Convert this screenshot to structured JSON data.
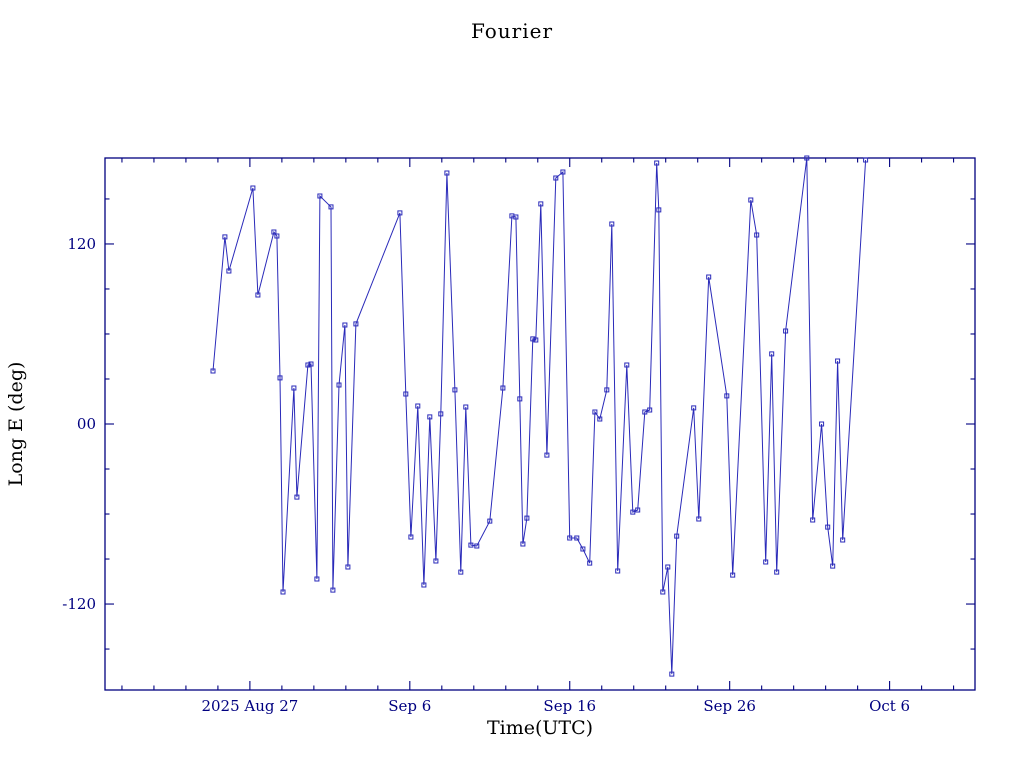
{
  "chart_data": {
    "type": "line",
    "title": "Fourier",
    "xlabel": "Time(UTC)",
    "ylabel": "Long E (deg)",
    "xlim": [
      0,
      54.4
    ],
    "ylim": [
      -177.3,
      177.3
    ],
    "grid": false,
    "legend": "none",
    "frame_color": "#000080",
    "line_color": "#2a2ab9",
    "marker": "open-square",
    "x_ticks": [
      {
        "label": "2025 Aug 27",
        "day": 9.06
      },
      {
        "label": "Sep 6",
        "day": 19.06
      },
      {
        "label": "Sep 16",
        "day": 29.06
      },
      {
        "label": "Sep 26",
        "day": 39.06
      },
      {
        "label": "Oct 6",
        "day": 49.06
      }
    ],
    "x_minor_start": 1.06,
    "x_minor_step": 2,
    "y_ticks": [
      {
        "label": "120",
        "value": 120
      },
      {
        "label": "00",
        "value": 0
      },
      {
        "label": "-120",
        "value": -120
      }
    ],
    "y_minor_step": 30,
    "points": [
      [
        6.75,
        35.3
      ],
      [
        7.5,
        124.7
      ],
      [
        7.75,
        102.0
      ],
      [
        9.25,
        157.3
      ],
      [
        9.56,
        86.0
      ],
      [
        10.56,
        128.0
      ],
      [
        10.75,
        125.3
      ],
      [
        10.94,
        30.7
      ],
      [
        11.13,
        -112.0
      ],
      [
        11.81,
        24.0
      ],
      [
        12.0,
        -48.7
      ],
      [
        12.69,
        39.3
      ],
      [
        12.88,
        40.0
      ],
      [
        13.25,
        -103.3
      ],
      [
        13.44,
        152.0
      ],
      [
        14.13,
        144.7
      ],
      [
        14.25,
        -110.7
      ],
      [
        14.63,
        26.0
      ],
      [
        15.0,
        66.0
      ],
      [
        15.19,
        -95.3
      ],
      [
        15.69,
        66.7
      ],
      [
        18.44,
        140.7
      ],
      [
        18.81,
        20.0
      ],
      [
        19.13,
        -75.3
      ],
      [
        19.56,
        12.0
      ],
      [
        19.94,
        -107.3
      ],
      [
        20.31,
        4.7
      ],
      [
        20.69,
        -91.3
      ],
      [
        21.0,
        6.7
      ],
      [
        21.38,
        167.3
      ],
      [
        21.88,
        22.7
      ],
      [
        22.25,
        -98.7
      ],
      [
        22.56,
        11.3
      ],
      [
        22.88,
        -80.7
      ],
      [
        23.25,
        -81.3
      ],
      [
        24.06,
        -64.7
      ],
      [
        24.88,
        24.0
      ],
      [
        25.44,
        138.7
      ],
      [
        25.69,
        138.0
      ],
      [
        25.94,
        16.7
      ],
      [
        26.13,
        -80.0
      ],
      [
        26.38,
        -62.7
      ],
      [
        26.75,
        56.7
      ],
      [
        26.94,
        56.0
      ],
      [
        27.25,
        146.7
      ],
      [
        27.63,
        -20.7
      ],
      [
        28.19,
        164.0
      ],
      [
        28.63,
        168.0
      ],
      [
        29.06,
        -76.0
      ],
      [
        29.5,
        -76.0
      ],
      [
        29.88,
        -83.3
      ],
      [
        30.31,
        -92.7
      ],
      [
        30.63,
        8.0
      ],
      [
        30.94,
        3.3
      ],
      [
        31.38,
        22.7
      ],
      [
        31.69,
        133.3
      ],
      [
        32.06,
        -98.0
      ],
      [
        32.63,
        39.3
      ],
      [
        33.0,
        -58.7
      ],
      [
        33.31,
        -57.3
      ],
      [
        33.75,
        8.0
      ],
      [
        34.06,
        9.3
      ],
      [
        34.5,
        174.0
      ],
      [
        34.63,
        142.7
      ],
      [
        34.88,
        -112.0
      ],
      [
        35.19,
        -95.3
      ],
      [
        35.44,
        -166.7
      ],
      [
        35.75,
        -74.7
      ],
      [
        36.81,
        10.7
      ],
      [
        37.13,
        -63.3
      ],
      [
        37.75,
        98.0
      ],
      [
        38.88,
        18.7
      ],
      [
        39.25,
        -100.7
      ],
      [
        40.38,
        149.3
      ],
      [
        40.75,
        126.0
      ],
      [
        41.31,
        -92.0
      ],
      [
        41.69,
        46.7
      ],
      [
        42.0,
        -98.7
      ],
      [
        42.56,
        62.0
      ],
      [
        43.88,
        177.3
      ],
      [
        44.25,
        -64.0
      ],
      [
        44.81,
        0.0
      ],
      [
        45.19,
        -68.7
      ],
      [
        45.5,
        -94.7
      ],
      [
        45.81,
        42.0
      ],
      [
        46.13,
        -77.3
      ],
      [
        47.56,
        176.0
      ]
    ]
  }
}
